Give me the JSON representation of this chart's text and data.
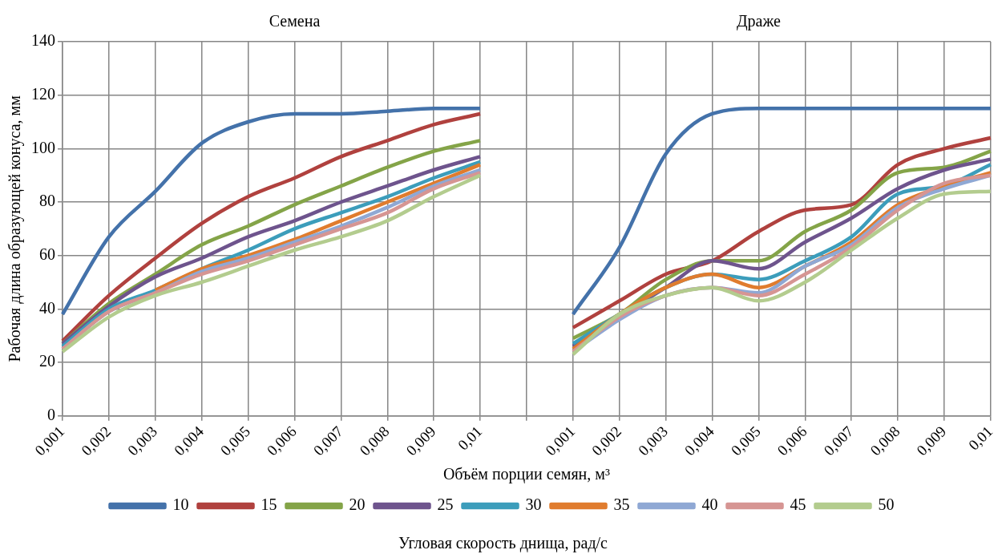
{
  "chart_data": {
    "type": "line",
    "xlabel": "Объём порции семян, м³",
    "ylabel": "Рабочая длина образующей конуса, мм",
    "legend_title": "Угловая скорость днища, рад/с",
    "annotations": [
      "Семена",
      "Драже"
    ],
    "categories": [
      "0,001",
      "0,002",
      "0,003",
      "0,004",
      "0,005",
      "0,006",
      "0,007",
      "0,008",
      "0,009",
      "0,01",
      null,
      "0,001",
      "0,002",
      "0,003",
      "0,004",
      "0,005",
      "0,006",
      "0,007",
      "0,008",
      "0,009",
      "0,01"
    ],
    "ylim": [
      0,
      140
    ],
    "yticks": [
      0,
      20,
      40,
      60,
      80,
      100,
      120,
      140
    ],
    "grid": true,
    "legend": "bottom",
    "marker": "none",
    "line_style": "solid",
    "series": [
      {
        "name": "10",
        "color": "#4472aa",
        "values": [
          38,
          67,
          84,
          102,
          110,
          113,
          113,
          114,
          115,
          115,
          null,
          38,
          63,
          98,
          113,
          115,
          115,
          115,
          115,
          115,
          115
        ]
      },
      {
        "name": "15",
        "color": "#b0413e",
        "values": [
          28,
          45,
          59,
          72,
          82,
          89,
          97,
          103,
          109,
          113,
          null,
          33,
          43,
          53,
          58,
          69,
          77,
          79,
          94,
          100,
          104
        ]
      },
      {
        "name": "20",
        "color": "#84a448",
        "values": [
          27,
          42,
          53,
          64,
          71,
          79,
          86,
          93,
          99,
          103,
          null,
          29,
          38,
          51,
          58,
          58,
          69,
          77,
          91,
          93,
          99
        ]
      },
      {
        "name": "25",
        "color": "#6e548d",
        "values": [
          27,
          41,
          52,
          59,
          67,
          73,
          80,
          86,
          92,
          97,
          null,
          26,
          37,
          48,
          58,
          55,
          65,
          74,
          85,
          92,
          96
        ]
      },
      {
        "name": "30",
        "color": "#3c9dbb",
        "values": [
          26,
          40,
          47,
          55,
          62,
          70,
          76,
          82,
          89,
          95,
          null,
          27,
          38,
          48,
          53,
          51,
          58,
          67,
          83,
          86,
          94
        ]
      },
      {
        "name": "35",
        "color": "#e07c2e",
        "values": [
          null,
          null,
          47,
          55,
          60,
          66,
          73,
          80,
          87,
          94,
          null,
          25,
          38,
          48,
          53,
          48,
          56,
          65,
          79,
          86,
          91
        ]
      },
      {
        "name": "40",
        "color": "#8fa8d4",
        "values": [
          25,
          39,
          46,
          54,
          59,
          65,
          71,
          78,
          86,
          92,
          null,
          24,
          36,
          45,
          48,
          46,
          56,
          64,
          78,
          85,
          90
        ]
      },
      {
        "name": "45",
        "color": "#d69593",
        "values": [
          25,
          39,
          46,
          53,
          58,
          64,
          70,
          76,
          85,
          91,
          null,
          24,
          37,
          45,
          48,
          45,
          53,
          63,
          77,
          87,
          90
        ]
      },
      {
        "name": "50",
        "color": "#b3cc8e",
        "values": [
          24,
          37,
          45,
          50,
          56,
          62,
          67,
          73,
          82,
          90,
          null,
          23,
          38,
          45,
          48,
          43,
          50,
          62,
          74,
          83,
          84
        ]
      }
    ]
  }
}
